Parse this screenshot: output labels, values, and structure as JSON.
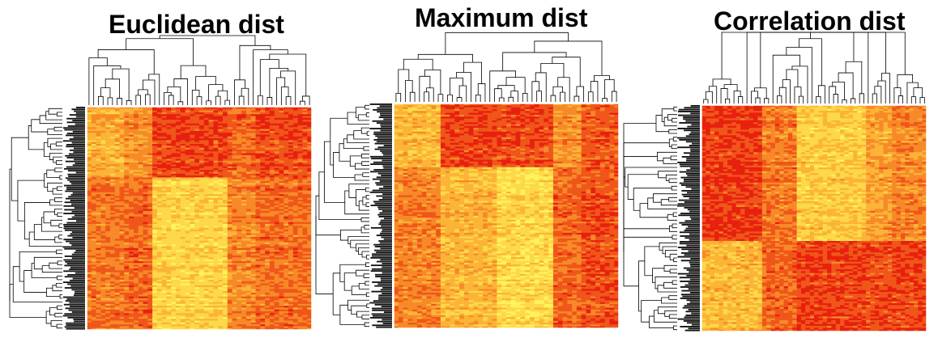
{
  "chart_data": [
    {
      "type": "heatmap",
      "title": "Euclidean dist",
      "colormap": [
        "#e8200f",
        "#f0561a",
        "#f78a28",
        "#fbb437",
        "#fdd848",
        "#fff35c"
      ],
      "column_dendrogram": true,
      "row_dendrogram": true,
      "column_blocks": [
        {
          "columns": 8,
          "upper_level": 0.55,
          "lower_level": 0.35
        },
        {
          "columns": 6,
          "upper_level": 0.45,
          "lower_level": 0.3
        },
        {
          "columns": 16,
          "upper_level": 0.18,
          "lower_level": 0.72
        },
        {
          "columns": 6,
          "upper_level": 0.3,
          "lower_level": 0.42
        },
        {
          "columns": 12,
          "upper_level": 0.2,
          "lower_level": 0.32
        }
      ],
      "upper_fraction": 0.32
    },
    {
      "type": "heatmap",
      "title": "Maximum dist",
      "colormap": [
        "#e8200f",
        "#f0561a",
        "#f78a28",
        "#fbb437",
        "#fdd848",
        "#fff35c"
      ],
      "column_dendrogram": true,
      "row_dendrogram": true,
      "column_blocks": [
        {
          "columns": 10,
          "upper_level": 0.6,
          "lower_level": 0.38
        },
        {
          "columns": 12,
          "upper_level": 0.18,
          "lower_level": 0.58
        },
        {
          "columns": 12,
          "upper_level": 0.2,
          "lower_level": 0.75
        },
        {
          "columns": 6,
          "upper_level": 0.45,
          "lower_level": 0.3
        },
        {
          "columns": 8,
          "upper_level": 0.25,
          "lower_level": 0.22
        }
      ],
      "upper_fraction": 0.28
    },
    {
      "type": "heatmap",
      "title": "Correlation dist",
      "colormap": [
        "#e8200f",
        "#f0561a",
        "#f78a28",
        "#fbb437",
        "#fdd848",
        "#fff35c"
      ],
      "column_dendrogram": true,
      "row_dendrogram": true,
      "column_blocks": [
        {
          "columns": 14,
          "upper_level": 0.15,
          "lower_level": 0.62
        },
        {
          "columns": 8,
          "upper_level": 0.35,
          "lower_level": 0.3
        },
        {
          "columns": 16,
          "upper_level": 0.68,
          "lower_level": 0.18
        },
        {
          "columns": 6,
          "upper_level": 0.5,
          "lower_level": 0.22
        },
        {
          "columns": 8,
          "upper_level": 0.4,
          "lower_level": 0.2
        }
      ],
      "upper_fraction": 0.6
    }
  ]
}
